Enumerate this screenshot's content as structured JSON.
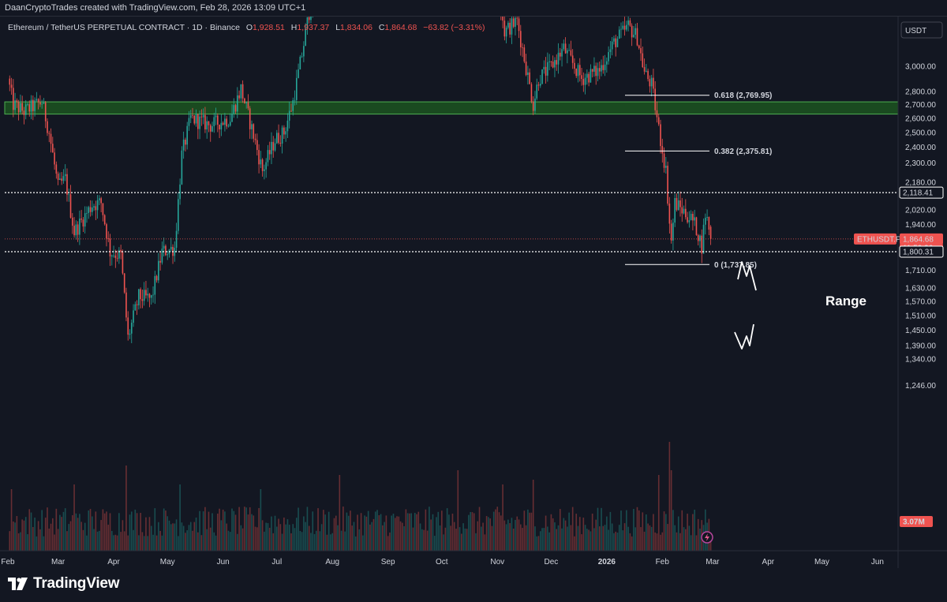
{
  "header": {
    "attribution": "DaanCryptoTrades created with TradingView.com, Feb 28, 2026 13:09 UTC+1"
  },
  "legend": {
    "symbol": "Ethereum / TetherUS PERPETUAL CONTRACT · 1D · Binance",
    "o_label": "O",
    "o_value": "1,928.51",
    "h_label": "H",
    "h_value": "1,937.37",
    "l_label": "L",
    "l_value": "1,834.06",
    "c_label": "C",
    "c_value": "1,864.68",
    "change": "−63.82 (−3.31%)"
  },
  "currency_button": "USDT",
  "annotations": {
    "range_label": "Range"
  },
  "badges": {
    "ticker": "ETHUSDT.P",
    "last_price": "1,864.68",
    "countdown": "11:50:26",
    "upper_level": "2,118.41",
    "lower_level": "1,800.31",
    "volume": "3.07M"
  },
  "colors": {
    "background": "#131722",
    "up": "#26a69a",
    "down": "#ef5350",
    "zone_fill": "#1e5c20",
    "zone_border": "#4caf50"
  },
  "footer": {
    "brand": "TradingView",
    "logo_icon": "tradingview-logo-icon"
  },
  "chart_data": {
    "type": "candlestick",
    "scale": "log",
    "y_ticks": [
      3000,
      2800,
      2700,
      2600,
      2500,
      2400,
      2300,
      2180,
      2020,
      1940,
      1710,
      1630,
      1570,
      1510,
      1450,
      1390,
      1340,
      1246
    ],
    "y_tick_labels": [
      "3,000.00",
      "2,800.00",
      "2,700.00",
      "2,600.00",
      "2,500.00",
      "2,400.00",
      "2,300.00",
      "2,180.00",
      "2,020.00",
      "1,940.00",
      "1,710.00",
      "1,630.00",
      "1,570.00",
      "1,510.00",
      "1,450.00",
      "1,390.00",
      "1,340.00",
      "1,246.00"
    ],
    "x_labels": [
      "Feb",
      "Mar",
      "Apr",
      "May",
      "Jun",
      "Jul",
      "Aug",
      "Sep",
      "Oct",
      "Nov",
      "Dec",
      "2026",
      "Feb",
      "Mar",
      "Apr",
      "May",
      "Jun"
    ],
    "zone": [
      2630,
      2720
    ],
    "levels": {
      "upper": 2118.41,
      "lower": 1800.31,
      "last": 1864.68
    },
    "fibonacci": [
      {
        "label": "0.618 (2,769.95)",
        "value": 2769.95
      },
      {
        "label": "0.382 (2,375.81)",
        "value": 2375.81
      },
      {
        "label": "0 (1,737.85)",
        "value": 1737.85
      }
    ],
    "waypoints": [
      [
        "2025-02-01",
        2900
      ],
      [
        "2025-02-04",
        2700
      ],
      [
        "2025-02-10",
        2650
      ],
      [
        "2025-02-20",
        2720
      ],
      [
        "2025-02-24",
        2500
      ],
      [
        "2025-03-01",
        2150
      ],
      [
        "2025-03-05",
        2200
      ],
      [
        "2025-03-10",
        1900
      ],
      [
        "2025-03-20",
        2050
      ],
      [
        "2025-03-25",
        2060
      ],
      [
        "2025-03-30",
        1800
      ],
      [
        "2025-04-05",
        1780
      ],
      [
        "2025-04-09",
        1420
      ],
      [
        "2025-04-15",
        1590
      ],
      [
        "2025-04-22",
        1580
      ],
      [
        "2025-04-28",
        1800
      ],
      [
        "2025-05-05",
        1820
      ],
      [
        "2025-05-09",
        2350
      ],
      [
        "2025-05-14",
        2600
      ],
      [
        "2025-05-25",
        2550
      ],
      [
        "2025-06-05",
        2600
      ],
      [
        "2025-06-11",
        2820
      ],
      [
        "2025-06-18",
        2480
      ],
      [
        "2025-06-23",
        2250
      ],
      [
        "2025-06-30",
        2450
      ],
      [
        "2025-07-05",
        2500
      ],
      [
        "2025-07-10",
        2720
      ],
      [
        "2025-07-15",
        3100
      ],
      [
        "2025-07-22",
        3800
      ],
      [
        "2025-08-10",
        4300
      ],
      [
        "2025-08-25",
        4700
      ],
      [
        "2025-09-10",
        4400
      ],
      [
        "2025-09-25",
        4100
      ],
      [
        "2025-10-06",
        4700
      ],
      [
        "2025-10-10",
        3800
      ],
      [
        "2025-10-20",
        4000
      ],
      [
        "2025-11-01",
        3800
      ],
      [
        "2025-11-05",
        3300
      ],
      [
        "2025-11-12",
        3400
      ],
      [
        "2025-11-21",
        2700
      ],
      [
        "2025-11-24",
        2900
      ],
      [
        "2025-12-01",
        3000
      ],
      [
        "2025-12-08",
        3150
      ],
      [
        "2025-12-18",
        2900
      ],
      [
        "2025-12-28",
        2970
      ],
      [
        "2026-01-05",
        3200
      ],
      [
        "2026-01-13",
        3350
      ],
      [
        "2026-01-18",
        3250
      ],
      [
        "2026-01-22",
        2950
      ],
      [
        "2026-01-26",
        2850
      ],
      [
        "2026-01-31",
        2450
      ],
      [
        "2026-02-03",
        2250
      ],
      [
        "2026-02-05",
        1950
      ],
      [
        "2026-02-06",
        1850
      ],
      [
        "2026-02-08",
        2060
      ],
      [
        "2026-02-14",
        2000
      ],
      [
        "2026-02-18",
        1960
      ],
      [
        "2026-02-20",
        1920
      ],
      [
        "2026-02-23",
        1830
      ],
      [
        "2026-02-25",
        2000
      ],
      [
        "2026-02-27",
        1928.51
      ],
      [
        "2026-02-28",
        1864.68
      ]
    ],
    "volume_spikes": [
      [
        "2025-04-08",
        1.8
      ],
      [
        "2025-03-10",
        1.4
      ],
      [
        "2025-02-03",
        1.3
      ],
      [
        "2025-05-08",
        1.4
      ],
      [
        "2025-06-22",
        1.3
      ],
      [
        "2025-08-05",
        1.6
      ],
      [
        "2025-10-10",
        1.7
      ],
      [
        "2025-11-04",
        1.4
      ],
      [
        "2025-11-21",
        1.5
      ],
      [
        "2026-01-30",
        1.6
      ],
      [
        "2026-02-05",
        2.3
      ],
      [
        "2026-02-06",
        1.7
      ]
    ]
  }
}
